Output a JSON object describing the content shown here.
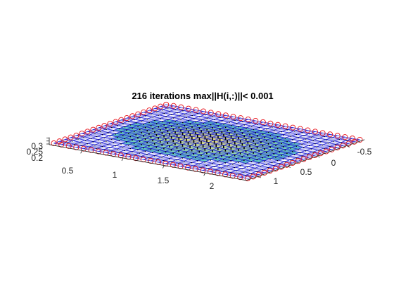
{
  "chart_data": {
    "type": "surface-mesh",
    "title": "216 iterations  max||H(i,:)||< 0.001",
    "x_ticks": [
      "0.5",
      "1",
      "1.5",
      "2"
    ],
    "y_ticks": [
      "-0.5",
      "0",
      "0.5",
      "1"
    ],
    "z_ticks": [
      "0.3",
      "0.25",
      "0.2"
    ],
    "xlim": [
      0.1,
      2.5
    ],
    "ylim": [
      -0.7,
      1.3
    ],
    "zlim": [
      0.19,
      0.31
    ],
    "grid": true,
    "mesh": {
      "nx": 27,
      "ny": 21,
      "base_z": 0.2,
      "peak_z": 0.3,
      "peak_center": [
        1.3,
        0.3
      ]
    },
    "colors": {
      "mesh_line": "#1f1fd6",
      "boundary_marker": "#e8131a",
      "interior_point": "#000000",
      "axis": "#262626",
      "grid": "#dcdcdc",
      "surface_low": "#3ec7c1",
      "surface_high": "#f4e86a"
    }
  }
}
